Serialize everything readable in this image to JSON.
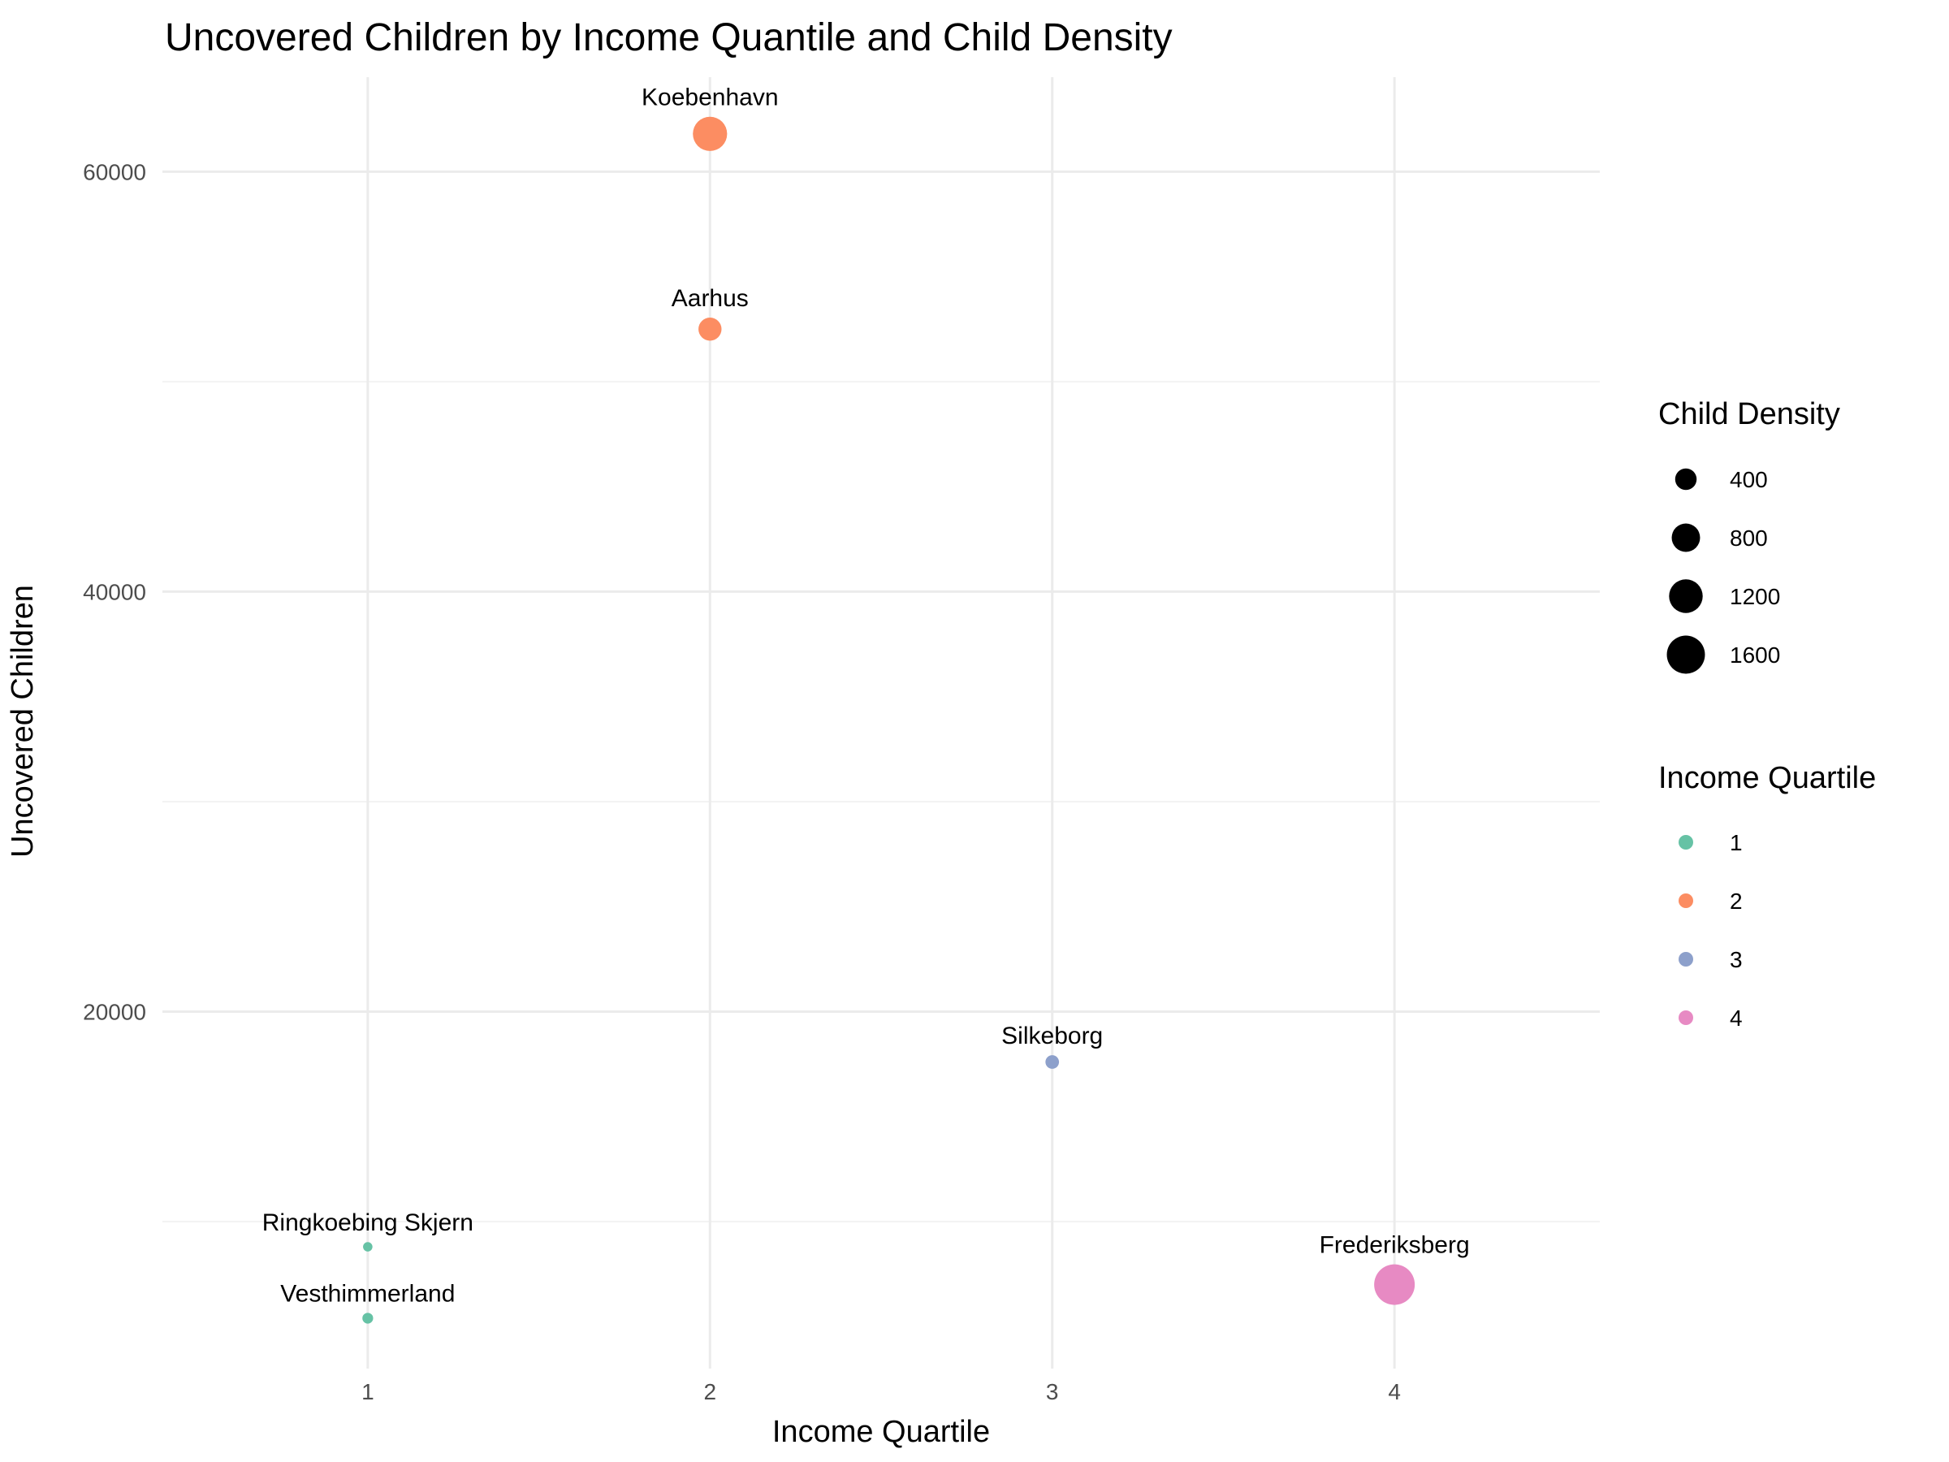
{
  "chart_data": {
    "type": "scatter",
    "title": "Uncovered Children by Income Quantile and Child Density",
    "xlabel": "Income Quartile",
    "ylabel": "Uncovered Children",
    "xlim": [
      0.4,
      4.6
    ],
    "ylim": [
      3000,
      64500
    ],
    "x_ticks": [
      1,
      2,
      3,
      4
    ],
    "y_ticks": [
      20000,
      40000,
      60000
    ],
    "y_minor_ticks": [
      10000,
      30000,
      50000
    ],
    "grid": true,
    "colors": {
      "1": "#66c2a5",
      "2": "#fc8d62",
      "3": "#8da0cb",
      "4": "#e78ac3"
    },
    "points": [
      {
        "label": "Koebenhavn",
        "x": 2,
        "y": 61800,
        "quartile": 2,
        "density": 1250
      },
      {
        "label": "Aarhus",
        "x": 2,
        "y": 52500,
        "quartile": 2,
        "density": 480
      },
      {
        "label": "Silkeborg",
        "x": 3,
        "y": 17600,
        "quartile": 3,
        "density": 110
      },
      {
        "label": "Ringkoebing Skjern",
        "x": 1,
        "y": 8800,
        "quartile": 1,
        "density": 30
      },
      {
        "label": "Vesthimmerland",
        "x": 1,
        "y": 5400,
        "quartile": 1,
        "density": 50
      },
      {
        "label": "Frederiksberg",
        "x": 4,
        "y": 7000,
        "quartile": 4,
        "density": 1850
      }
    ],
    "legend": {
      "placement": "right",
      "size_title": "Child Density",
      "size_entries": [
        400,
        800,
        1200,
        1600
      ],
      "color_title": "Income Quartile",
      "color_entries": [
        "1",
        "2",
        "3",
        "4"
      ]
    }
  }
}
